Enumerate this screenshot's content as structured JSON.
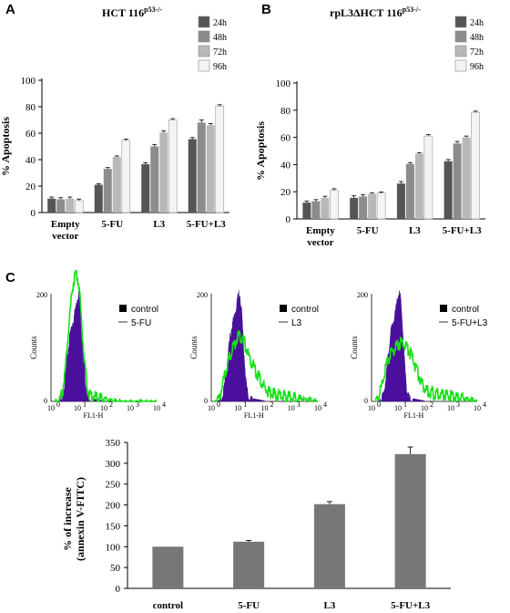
{
  "panels": {
    "A": "A",
    "B": "B",
    "C": "C"
  },
  "chart_data": [
    {
      "id": "A",
      "type": "bar",
      "title": "HCT 116",
      "title_sup": "p53-/-",
      "ylabel": "% Apoptosis",
      "ylim": [
        0,
        100
      ],
      "yticks": [
        0,
        20,
        40,
        60,
        80,
        100
      ],
      "categories": [
        "Empty\nvector",
        "5-FU",
        "L3",
        "5-FU+L3"
      ],
      "legend_position": "top-right",
      "series": [
        {
          "name": "24h",
          "color": "#555555",
          "values": [
            10.5,
            21,
            36.5,
            55.5
          ],
          "errors": [
            1.2,
            0.8,
            1.2,
            1.2
          ]
        },
        {
          "name": "48h",
          "color": "#8c8c8c",
          "values": [
            10,
            33,
            50,
            68
          ],
          "errors": [
            1.2,
            1,
            1.5,
            2
          ]
        },
        {
          "name": "72h",
          "color": "#b8b8b8",
          "values": [
            10.5,
            42,
            60.5,
            66
          ],
          "errors": [
            1.2,
            0.8,
            1.2,
            1.2
          ]
        },
        {
          "name": "96h",
          "color": "#f4f4f4",
          "values": [
            9,
            54.5,
            70,
            80.5
          ],
          "errors": [
            1.2,
            1,
            1,
            1
          ]
        }
      ]
    },
    {
      "id": "B",
      "type": "bar",
      "title": "rpL3ΔHCT 116",
      "title_sup": "p53-/-",
      "ylabel": "% Apoptosis",
      "ylim": [
        0,
        100
      ],
      "yticks": [
        0,
        20,
        40,
        60,
        80,
        100
      ],
      "categories": [
        "Empty\nvector",
        "5-FU",
        "L3",
        "5-FU+L3"
      ],
      "legend_position": "top-right",
      "series": [
        {
          "name": "24h",
          "color": "#555555",
          "values": [
            12,
            15.5,
            26,
            42.5
          ],
          "errors": [
            1.2,
            1.5,
            1.5,
            1.2
          ]
        },
        {
          "name": "48h",
          "color": "#8c8c8c",
          "values": [
            13,
            16.5,
            40.5,
            55.5
          ],
          "errors": [
            1.2,
            1.2,
            1,
            1.5
          ]
        },
        {
          "name": "72h",
          "color": "#b8b8b8",
          "values": [
            15.5,
            18.5,
            48,
            60
          ],
          "errors": [
            1.2,
            0.8,
            0.8,
            1
          ]
        },
        {
          "name": "96h",
          "color": "#f4f4f4",
          "values": [
            21,
            19,
            61,
            78.5
          ],
          "errors": [
            1.2,
            0.8,
            1,
            0.8
          ]
        }
      ]
    },
    {
      "id": "C-bar",
      "type": "bar",
      "ylabel": "% of increase\n(annexin V-FITC)",
      "ylim": [
        0,
        350
      ],
      "yticks": [
        0,
        50,
        100,
        150,
        200,
        250,
        300,
        350
      ],
      "categories": [
        "control",
        "5-FU",
        "L3",
        "5-FU+L3"
      ],
      "color": "#777777",
      "values": [
        100,
        112,
        202,
        322
      ],
      "errors": [
        0,
        3,
        6,
        17
      ]
    }
  ],
  "flow": {
    "ylabel": "Counts",
    "xlabel": "FL1-H",
    "ytick_top": "200",
    "ytick_bottom": "0",
    "xticks": [
      "10",
      "10",
      "10",
      "10",
      "10"
    ],
    "xticks_exp": [
      "0",
      "1",
      "2",
      "3",
      "4"
    ],
    "panels": [
      {
        "legend_control": "control",
        "legend_treat": "5-FU"
      },
      {
        "legend_control": "control",
        "legend_treat": "L3"
      },
      {
        "legend_control": "control",
        "legend_treat": "5-FU+L3"
      }
    ],
    "colors": {
      "control": "#4b0f9e",
      "treatment": "#18e018"
    }
  }
}
